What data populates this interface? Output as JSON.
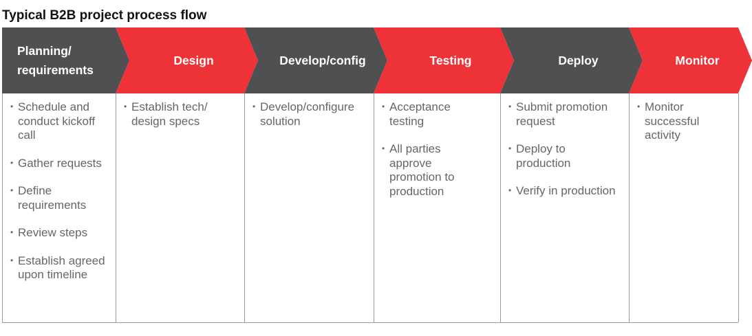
{
  "title": "Typical B2B project process flow",
  "stages": [
    {
      "label": "Planning/ requirements",
      "items": [
        "Schedule and conduct kickoff call",
        "Gather requests",
        "Define requirements",
        "Review steps",
        "Establish agreed upon timeline"
      ]
    },
    {
      "label": "Design",
      "items": [
        "Establish tech/ design specs"
      ]
    },
    {
      "label": "Develop/config",
      "items": [
        "Develop/configure solution"
      ]
    },
    {
      "label": "Testing",
      "items": [
        "Acceptance testing",
        "All parties approve promotion to production"
      ]
    },
    {
      "label": "Deploy",
      "items": [
        "Submit promotion request",
        "Deploy to production",
        "Verify in production"
      ]
    },
    {
      "label": "Monitor",
      "items": [
        "Monitor successful activity"
      ]
    }
  ]
}
